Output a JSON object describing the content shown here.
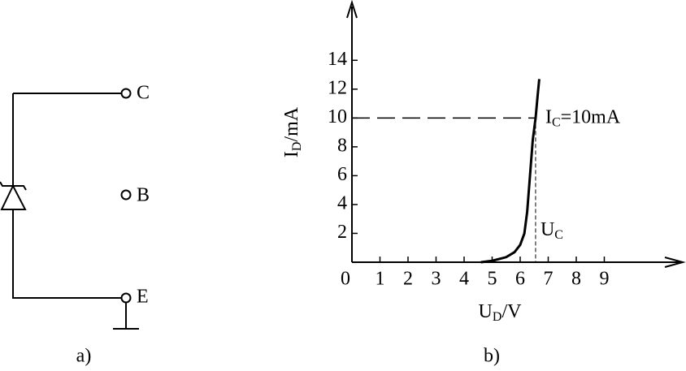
{
  "circuit": {
    "terminals": [
      "C",
      "B",
      "E"
    ],
    "caption": "a)"
  },
  "chart_data": {
    "type": "line",
    "caption": "b)",
    "x_label": {
      "main": "U",
      "sub": "D",
      "unit": "/V"
    },
    "y_label": {
      "main": "I",
      "sub": "D",
      "unit": "/mA"
    },
    "x": [
      4.6,
      5.0,
      5.5,
      5.8,
      6.0,
      6.15,
      6.25,
      6.35,
      6.45,
      6.55,
      6.62,
      6.68
    ],
    "series": [
      {
        "color": "#000000",
        "values": [
          0,
          0.1,
          0.35,
          0.7,
          1.2,
          2.0,
          3.5,
          6.0,
          8.5,
          10,
          11.5,
          12.7
        ]
      }
    ],
    "xlim": [
      0,
      11.74
    ],
    "ylim": [
      0,
      17.9
    ],
    "xticks": [
      0,
      1,
      2,
      3,
      4,
      5,
      6,
      7,
      8,
      9
    ],
    "yticks": [
      2,
      4,
      6,
      8,
      10,
      12,
      14
    ],
    "annotations": {
      "ic": {
        "label": {
          "main": "I",
          "sub": "C",
          "rest": "=10mA"
        },
        "value": 10
      },
      "uc": {
        "label": {
          "main": "U",
          "sub": "C"
        },
        "value": 6.55
      }
    }
  }
}
